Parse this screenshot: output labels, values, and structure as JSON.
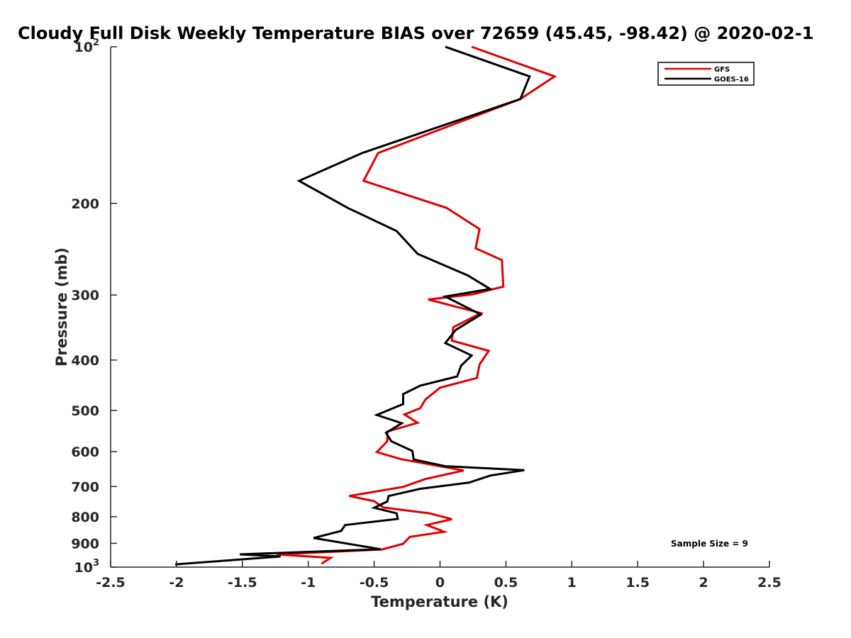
{
  "chart_data": {
    "type": "line",
    "title": "Cloudy Full Disk Weekly Temperature BIAS over 72659 (45.45, -98.42) @ 2020-02-1",
    "xlabel": "Temperature (K)",
    "ylabel": "Pressure (mb)",
    "xlim": [
      -2.5,
      2.5
    ],
    "ylim": [
      100,
      1000
    ],
    "y_scale": "log",
    "y_reversed": true,
    "x_ticks": [
      "-2.5",
      "-2",
      "-1.5",
      "-1",
      "-0.5",
      "0",
      "0.5",
      "1",
      "1.5",
      "2",
      "2.5"
    ],
    "y_ticks": [
      {
        "value": 100,
        "base": "10",
        "exp": "2"
      },
      {
        "value": 200,
        "label": "200"
      },
      {
        "value": 300,
        "label": "300"
      },
      {
        "value": 400,
        "label": "400"
      },
      {
        "value": 500,
        "label": "500"
      },
      {
        "value": 600,
        "label": "600"
      },
      {
        "value": 700,
        "label": "700"
      },
      {
        "value": 800,
        "label": "800"
      },
      {
        "value": 900,
        "label": "900"
      },
      {
        "value": 1000,
        "base": "10",
        "exp": "3"
      }
    ],
    "grid": false,
    "legend_position": "top-right",
    "annotation": "Sample Size = 9",
    "series": [
      {
        "name": "GFS",
        "color": "#e00000",
        "x": [
          0.24,
          0.87,
          0.61,
          -0.47,
          -0.58,
          0.05,
          0.3,
          0.27,
          0.47,
          0.48,
          0.25,
          -0.09,
          0.31,
          0.1,
          0.09,
          0.37,
          0.3,
          0.28,
          0.0,
          -0.11,
          -0.15,
          -0.27,
          -0.17,
          -0.4,
          -0.4,
          -0.48,
          -0.3,
          0.18,
          -0.11,
          -0.28,
          -0.69,
          -0.5,
          -0.43,
          -0.08,
          0.09,
          -0.1,
          0.03,
          -0.23,
          -0.28,
          -0.44,
          -1.24,
          -0.83,
          -0.9
        ],
        "y": [
          100,
          114,
          126,
          160,
          181,
          204,
          224,
          244,
          257,
          289,
          299,
          306,
          325,
          346,
          367,
          384,
          408,
          433,
          452,
          476,
          495,
          509,
          528,
          549,
          573,
          601,
          620,
          652,
          677,
          701,
          730,
          747,
          768,
          788,
          809,
          830,
          855,
          875,
          902,
          925,
          945,
          960,
          985
        ]
      },
      {
        "name": "GOES-16",
        "color": "#000000",
        "x": [
          0.04,
          0.68,
          0.61,
          -0.59,
          -1.07,
          -0.7,
          -0.33,
          -0.17,
          0.21,
          0.38,
          0.04,
          0.31,
          0.12,
          0.04,
          0.24,
          0.16,
          0.13,
          -0.15,
          -0.28,
          -0.28,
          -0.48,
          -0.29,
          -0.41,
          -0.37,
          -0.21,
          -0.2,
          0.04,
          0.64,
          0.38,
          0.22,
          -0.15,
          -0.39,
          -0.4,
          -0.5,
          -0.33,
          -0.32,
          -0.72,
          -0.75,
          -0.96,
          -0.45,
          -1.52,
          -1.21,
          -2.01
        ],
        "y": [
          100,
          114,
          126,
          160,
          181,
          204,
          226,
          250,
          275,
          292,
          302,
          327,
          350,
          371,
          392,
          410,
          430,
          448,
          465,
          486,
          510,
          529,
          552,
          573,
          598,
          621,
          640,
          651,
          667,
          688,
          707,
          730,
          748,
          769,
          788,
          808,
          830,
          852,
          879,
          924,
          945,
          954,
          988
        ]
      }
    ]
  }
}
